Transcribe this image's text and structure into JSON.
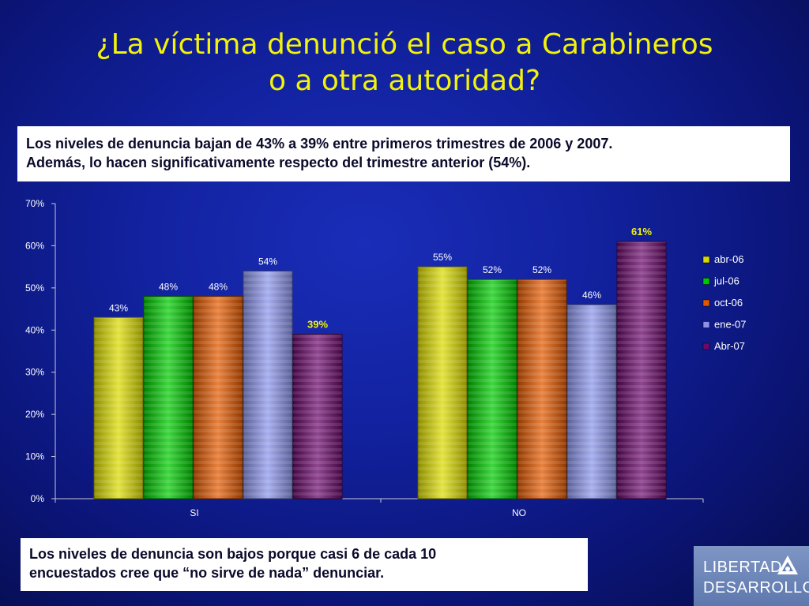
{
  "title": {
    "line1": "¿La víctima denunció el caso a Carabineros",
    "line2": "o a otra autoridad?"
  },
  "note_top": {
    "line1": "Los niveles de denuncia bajan de 43% a 39% entre primeros trimestres de 2006 y 2007.",
    "line2": "Además, lo hacen significativamente respecto del trimestre anterior (54%)."
  },
  "note_bottom": {
    "line1": "Los niveles de denuncia son bajos porque casi 6 de cada 10",
    "line2": "encuestados cree que “no sirve de nada” denunciar."
  },
  "logo": {
    "line1": "LIBERTAD",
    "line2": "DESARROLLO",
    "icon": "triangle-mountain-icon"
  },
  "chart_data": {
    "type": "bar",
    "categories": [
      "SI",
      "NO"
    ],
    "series": [
      {
        "name": "abr-06",
        "values": [
          43,
          55
        ],
        "labels": [
          "43%",
          "55%"
        ],
        "color": "#d9d900"
      },
      {
        "name": "jul-06",
        "values": [
          48,
          52
        ],
        "labels": [
          "48%",
          "52%"
        ],
        "color": "#00c800"
      },
      {
        "name": "oct-06",
        "values": [
          48,
          52
        ],
        "labels": [
          "48%",
          "52%"
        ],
        "color": "#e05800"
      },
      {
        "name": "ene-07",
        "values": [
          54,
          46
        ],
        "labels": [
          "54%",
          "46%"
        ],
        "color": "#8a93e8"
      },
      {
        "name": "Abr-07",
        "values": [
          39,
          61
        ],
        "labels": [
          "39%",
          "61%"
        ],
        "color": "#6a0a6a"
      }
    ],
    "highlight_label_color": "#f2f20a",
    "highlight_series": "Abr-07",
    "ylim": [
      0,
      70
    ],
    "yticks": [
      "0%",
      "10%",
      "20%",
      "30%",
      "40%",
      "50%",
      "60%",
      "70%"
    ],
    "ytick_values": [
      0,
      10,
      20,
      30,
      40,
      50,
      60,
      70
    ],
    "legend_position": "right",
    "grid": false,
    "xlabel": "",
    "ylabel": ""
  }
}
